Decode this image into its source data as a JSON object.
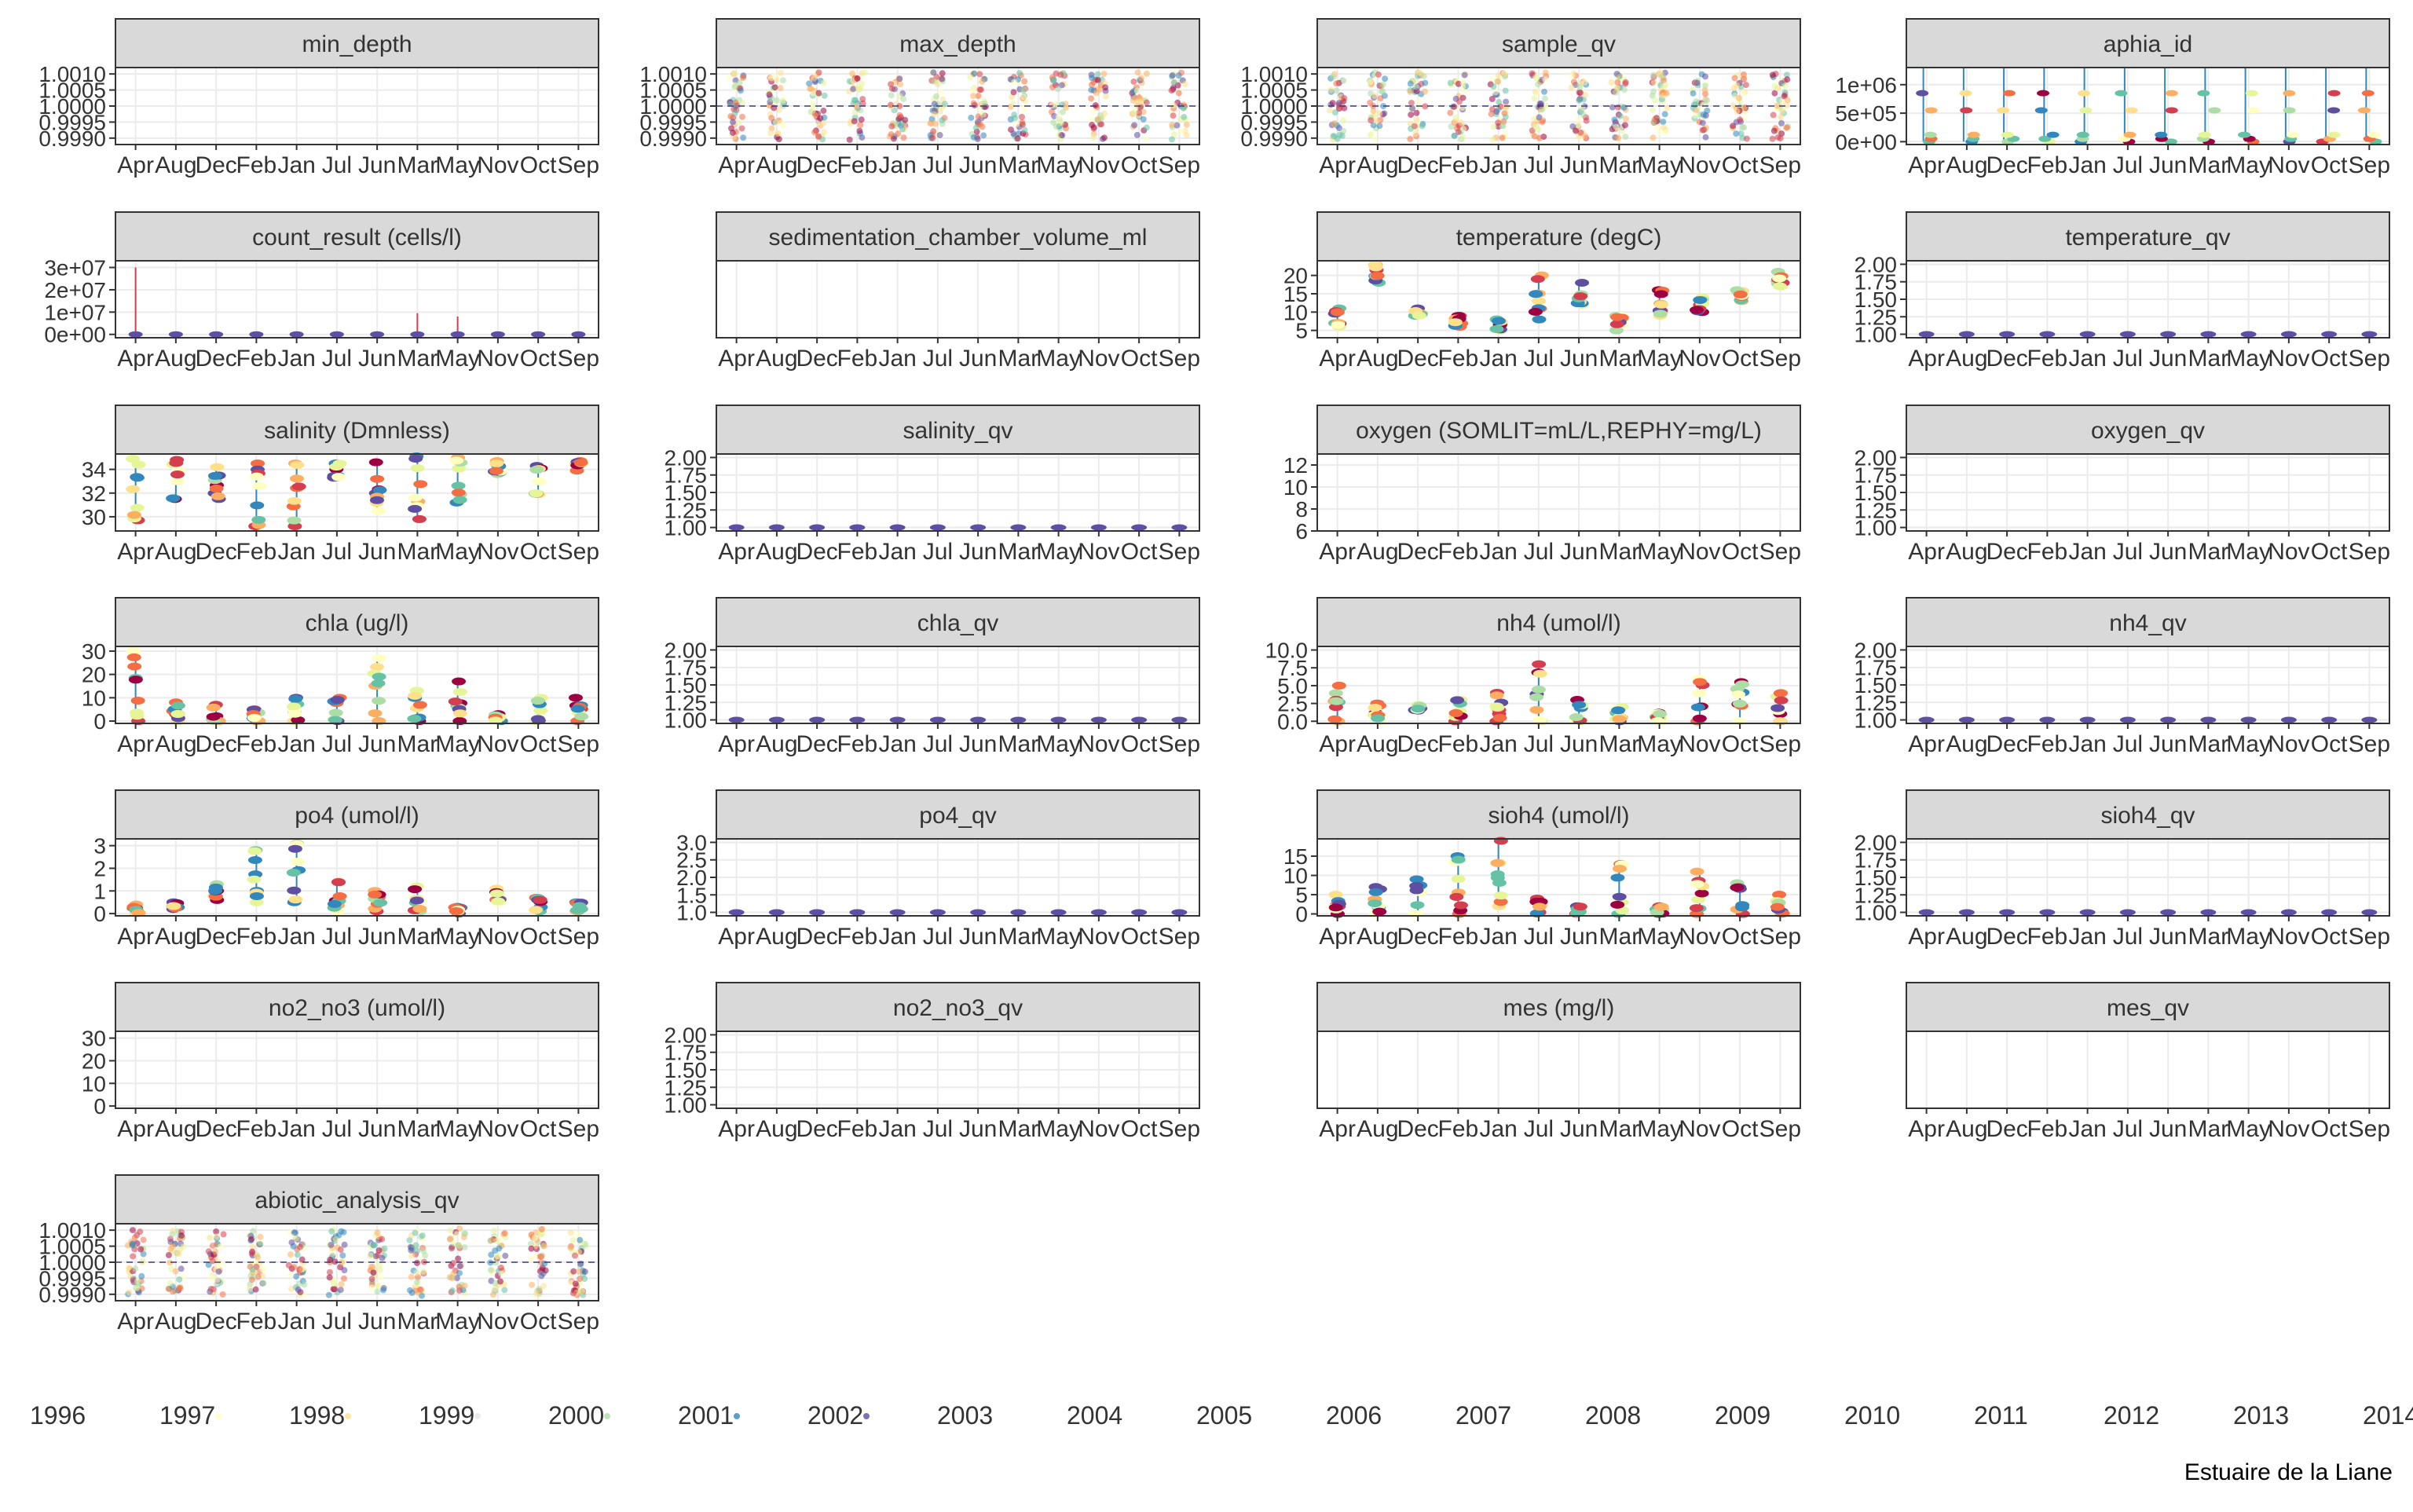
{
  "caption": "Estuaire de la Liane",
  "months": [
    "Apr",
    "Aug",
    "Dec",
    "Feb",
    "Jan",
    "Jul",
    "Jun",
    "Mar",
    "May",
    "Nov",
    "Oct",
    "Sep"
  ],
  "palette": [
    "#9e0142",
    "#d53e4f",
    "#f46d43",
    "#fdae61",
    "#fee08b",
    "#ffffbf",
    "#e6f598",
    "#abdda4",
    "#66c2a5",
    "#3288bd",
    "#5e4fa2"
  ],
  "legend": {
    "years": [
      "1996",
      "1997",
      "1998",
      "1999",
      "2000",
      "2001",
      "2002",
      "2003",
      "2004",
      "2005",
      "2006",
      "2007",
      "2008",
      "2009",
      "2010",
      "2011",
      "2012",
      "2013",
      "2014"
    ],
    "key_colors": [
      "#ffffff",
      "#ffffbf",
      "#fee08b",
      "#e6e6e6",
      "#abdda4",
      "#3288bd",
      "#5e4fa2",
      "#ffffff",
      "#ffffff",
      "#ffffff",
      "#ffffff",
      "#ffffff",
      "#ffffff",
      "#ffffff",
      "#ffffff",
      "#ffffff",
      "#ffffff",
      "#ffffff",
      "#ffffff"
    ]
  },
  "chart_data": [
    {
      "title": "min_depth",
      "type": "scatter",
      "x": "month",
      "yticks": [
        "1.0010",
        "1.0005",
        "1.0000",
        "0.9995",
        "0.9990"
      ],
      "ylim": [
        0.9988,
        1.0012
      ],
      "series": []
    },
    {
      "title": "max_depth",
      "type": "scatter",
      "x": "month",
      "yticks": [
        "1.0010",
        "1.0005",
        "1.0000",
        "0.9995",
        "0.9990"
      ],
      "ylim": [
        0.9988,
        1.0012
      ],
      "reference": 1.0,
      "points": {
        "1.0": [
          1,
          1,
          1,
          1,
          1,
          1,
          1,
          1,
          1,
          1,
          1,
          1
        ]
      },
      "note_values": "dense jittered points around 1.0000 in every month"
    },
    {
      "title": "sample_qv",
      "type": "scatter",
      "x": "month",
      "yticks": [
        "1.0010",
        "1.0005",
        "1.0000",
        "0.9995",
        "0.9990"
      ],
      "ylim": [
        0.9988,
        1.0012
      ],
      "reference": 1.0
    },
    {
      "title": "aphia_id",
      "type": "scatter",
      "x": "month",
      "yticks": [
        "1e+06",
        "5e+05",
        "0e+00"
      ],
      "ylim": [
        -50000,
        1300000
      ],
      "max": 1300000
    },
    {
      "title": "count_result (cells/l)",
      "type": "scatter",
      "x": "month",
      "yticks": [
        "3e+07",
        "2e+07",
        "1e+07",
        "0e+00"
      ],
      "ylim": [
        -1500000,
        33000000
      ],
      "peaks": {
        "Apr": 30000000,
        "Mar": 9500000,
        "May": 8000000
      }
    },
    {
      "title": "sedimentation_chamber_volume_ml",
      "type": "scatter",
      "x": "month",
      "yticks": [],
      "ylim": [
        0,
        1
      ]
    },
    {
      "title": "temperature (degC)",
      "type": "scatter",
      "x": "month",
      "yticks": [
        "20",
        "15",
        "10",
        "5"
      ],
      "ylim": [
        3,
        24
      ],
      "ranges": [
        [
          6,
          11
        ],
        [
          18,
          23
        ],
        [
          9,
          11
        ],
        [
          6,
          9
        ],
        [
          5,
          8
        ],
        [
          8,
          20
        ],
        [
          12,
          18
        ],
        [
          5,
          9
        ],
        [
          9,
          16
        ],
        [
          10,
          14
        ],
        [
          13,
          16
        ],
        [
          17,
          21
        ]
      ]
    },
    {
      "title": "temperature_qv",
      "type": "scatter",
      "x": "month",
      "yticks": [
        "2.00",
        "1.75",
        "1.50",
        "1.25",
        "1.00"
      ],
      "ylim": [
        0.95,
        2.05
      ],
      "constant": 1.0
    },
    {
      "title": "salinity (Dmnless)",
      "type": "scatter",
      "x": "month",
      "yticks": [
        "34",
        "32",
        "30"
      ],
      "ylim": [
        28.8,
        35.3
      ],
      "ranges": [
        [
          29.7,
          34.9
        ],
        [
          31.5,
          34.8
        ],
        [
          31.5,
          34.2
        ],
        [
          29.2,
          34.5
        ],
        [
          29.2,
          34.5
        ],
        [
          33.3,
          34.5
        ],
        [
          30.5,
          34.6
        ],
        [
          29.8,
          35.1
        ],
        [
          31.2,
          35.0
        ],
        [
          33.6,
          34.7
        ],
        [
          31.9,
          34.3
        ],
        [
          33.9,
          34.7
        ]
      ]
    },
    {
      "title": "salinity_qv",
      "type": "scatter",
      "x": "month",
      "yticks": [
        "2.00",
        "1.75",
        "1.50",
        "1.25",
        "1.00"
      ],
      "ylim": [
        0.95,
        2.05
      ],
      "constant": 1.0
    },
    {
      "title": "oxygen (SOMLIT=mL/L,REPHY=mg/L)",
      "type": "scatter",
      "x": "month",
      "yticks": [
        "12",
        "10",
        "8",
        "6"
      ],
      "ylim": [
        6,
        13
      ],
      "series": []
    },
    {
      "title": "oxygen_qv",
      "type": "scatter",
      "x": "month",
      "yticks": [
        "2.00",
        "1.75",
        "1.50",
        "1.25",
        "1.00"
      ],
      "ylim": [
        0.95,
        2.05
      ],
      "series": []
    },
    {
      "title": "chla (ug/l)",
      "type": "scatter",
      "x": "month",
      "yticks": [
        "30",
        "20",
        "10",
        "0"
      ],
      "ylim": [
        -1,
        32
      ],
      "ranges": [
        [
          0,
          30
        ],
        [
          0,
          8
        ],
        [
          0,
          7
        ],
        [
          0,
          5
        ],
        [
          0,
          10
        ],
        [
          0,
          10
        ],
        [
          0,
          27
        ],
        [
          0,
          13
        ],
        [
          0,
          17
        ],
        [
          0,
          3
        ],
        [
          0,
          10
        ],
        [
          0,
          10
        ]
      ]
    },
    {
      "title": "chla_qv",
      "type": "scatter",
      "x": "month",
      "yticks": [
        "2.00",
        "1.75",
        "1.50",
        "1.25",
        "1.00"
      ],
      "ylim": [
        0.95,
        2.05
      ],
      "constant": 1.0
    },
    {
      "title": "nh4 (umol/l)",
      "type": "scatter",
      "x": "month",
      "yticks": [
        "10.0",
        "7.5",
        "5.0",
        "2.5",
        "0.0"
      ],
      "ylim": [
        -0.3,
        10.5
      ],
      "ranges": [
        [
          0,
          5
        ],
        [
          0,
          2.5
        ],
        [
          1.5,
          2.3
        ],
        [
          0,
          3
        ],
        [
          0,
          4
        ],
        [
          0,
          8
        ],
        [
          0,
          3
        ],
        [
          0,
          2
        ],
        [
          0,
          1.2
        ],
        [
          0,
          6
        ],
        [
          0,
          5.5
        ],
        [
          0,
          4
        ]
      ]
    },
    {
      "title": "nh4_qv",
      "type": "scatter",
      "x": "month",
      "yticks": [
        "2.00",
        "1.75",
        "1.50",
        "1.25",
        "1.00"
      ],
      "ylim": [
        0.95,
        2.05
      ],
      "constant": 1.0
    },
    {
      "title": "po4 (umol/l)",
      "type": "scatter",
      "x": "month",
      "yticks": [
        "3",
        "2",
        "1",
        "0"
      ],
      "ylim": [
        -0.1,
        3.3
      ],
      "ranges": [
        [
          0,
          0.4
        ],
        [
          0.2,
          0.5
        ],
        [
          0.6,
          1.3
        ],
        [
          0.5,
          2.8
        ],
        [
          0.5,
          3.1
        ],
        [
          0.1,
          1.4
        ],
        [
          0.1,
          1.0
        ],
        [
          0.1,
          1.2
        ],
        [
          0.0,
          0.3
        ],
        [
          0.5,
          1.1
        ],
        [
          0.1,
          0.7
        ],
        [
          0.1,
          0.5
        ]
      ]
    },
    {
      "title": "po4_qv",
      "type": "scatter",
      "x": "month",
      "yticks": [
        "3.0",
        "2.5",
        "2.0",
        "1.5",
        "1.0"
      ],
      "ylim": [
        0.9,
        3.1
      ],
      "constant": 1.0
    },
    {
      "title": "sioh4 (umol/l)",
      "type": "scatter",
      "x": "month",
      "yticks": [
        "15",
        "10",
        "5",
        "0"
      ],
      "ylim": [
        -0.5,
        19.5
      ],
      "ranges": [
        [
          0,
          5
        ],
        [
          0,
          7
        ],
        [
          0,
          9
        ],
        [
          0,
          15
        ],
        [
          2,
          19
        ],
        [
          0,
          4
        ],
        [
          0,
          2
        ],
        [
          0,
          13
        ],
        [
          0,
          2
        ],
        [
          0,
          11
        ],
        [
          0,
          8
        ],
        [
          0,
          5
        ]
      ]
    },
    {
      "title": "sioh4_qv",
      "type": "scatter",
      "x": "month",
      "yticks": [
        "2.00",
        "1.75",
        "1.50",
        "1.25",
        "1.00"
      ],
      "ylim": [
        0.95,
        2.05
      ],
      "constant": 1.0
    },
    {
      "title": "no2_no3 (umol/l)",
      "type": "scatter",
      "x": "month",
      "yticks": [
        "30",
        "20",
        "10",
        "0"
      ],
      "ylim": [
        -1,
        33
      ],
      "series": []
    },
    {
      "title": "no2_no3_qv",
      "type": "scatter",
      "x": "month",
      "yticks": [
        "2.00",
        "1.75",
        "1.50",
        "1.25",
        "1.00"
      ],
      "ylim": [
        0.95,
        2.05
      ],
      "series": []
    },
    {
      "title": "mes (mg/l)",
      "type": "scatter",
      "x": "month",
      "yticks": [],
      "ylim": [
        0,
        1
      ],
      "series": []
    },
    {
      "title": "mes_qv",
      "type": "scatter",
      "x": "month",
      "yticks": [],
      "ylim": [
        0,
        1
      ],
      "series": []
    },
    {
      "title": "abiotic_analysis_qv",
      "type": "scatter",
      "x": "month",
      "yticks": [
        "1.0010",
        "1.0005",
        "1.0000",
        "0.9995",
        "0.9990"
      ],
      "ylim": [
        0.9988,
        1.0012
      ],
      "reference": 1.0
    }
  ]
}
